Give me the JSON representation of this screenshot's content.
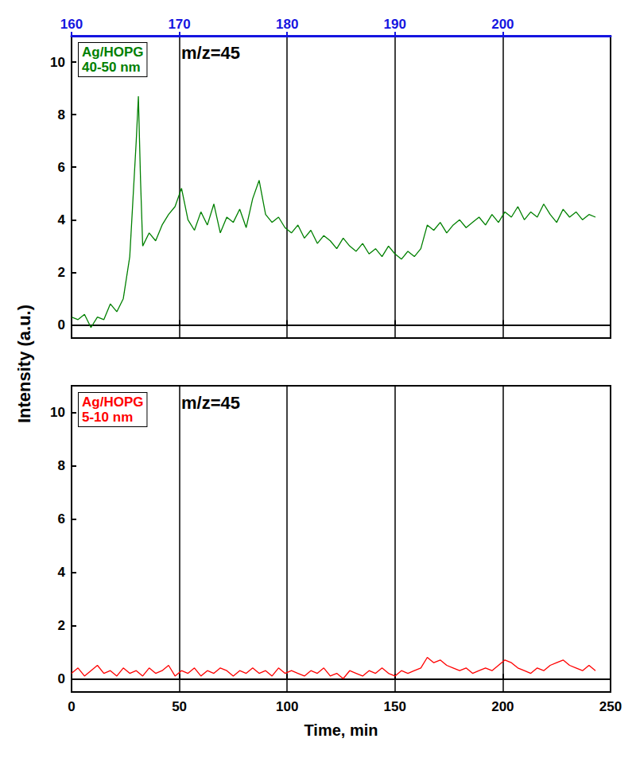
{
  "chart_data": [
    {
      "type": "line",
      "ylabel": "Intensity (a.u.)",
      "annotation": "m/z=45",
      "xlim": [
        0,
        250
      ],
      "xticks": [
        0,
        50,
        100,
        150,
        200,
        250
      ],
      "x2lim": [
        160,
        210
      ],
      "x2ticks": [
        160,
        170,
        180,
        190,
        200
      ],
      "ylim": [
        -0.5,
        11
      ],
      "yticks": [
        0,
        2,
        4,
        6,
        8,
        10
      ],
      "grid": true,
      "x": [
        0,
        3,
        6,
        9,
        12,
        15,
        18,
        21,
        24,
        27,
        30,
        31,
        32,
        33,
        36,
        39,
        42,
        45,
        48,
        51,
        54,
        57,
        60,
        63,
        66,
        69,
        72,
        75,
        78,
        81,
        84,
        87,
        90,
        93,
        96,
        99,
        102,
        105,
        108,
        111,
        114,
        117,
        120,
        123,
        126,
        129,
        132,
        135,
        138,
        141,
        144,
        147,
        150,
        153,
        156,
        159,
        162,
        165,
        168,
        171,
        174,
        177,
        180,
        183,
        186,
        189,
        192,
        195,
        198,
        201,
        204,
        207,
        210,
        213,
        216,
        219,
        222,
        225,
        228,
        231,
        234,
        237,
        240,
        243
      ],
      "series": [
        {
          "name": "Ag/HOPG 40-50 nm",
          "color": "#008000",
          "values": [
            0.3,
            0.2,
            0.4,
            -0.1,
            0.3,
            0.2,
            0.8,
            0.5,
            1.0,
            2.6,
            7.0,
            8.7,
            5.5,
            3.0,
            3.5,
            3.2,
            3.8,
            4.2,
            4.5,
            5.2,
            4.0,
            3.6,
            4.3,
            3.8,
            4.6,
            3.5,
            4.1,
            3.9,
            4.4,
            3.7,
            4.8,
            5.5,
            4.2,
            3.9,
            4.1,
            3.7,
            3.5,
            3.8,
            3.3,
            3.6,
            3.1,
            3.4,
            3.2,
            2.9,
            3.3,
            3.0,
            2.8,
            3.1,
            2.7,
            2.9,
            2.6,
            3.0,
            2.7,
            2.5,
            2.8,
            2.6,
            2.9,
            3.8,
            3.6,
            3.9,
            3.5,
            3.8,
            4.0,
            3.7,
            3.9,
            4.1,
            3.8,
            4.2,
            3.9,
            4.3,
            4.1,
            4.5,
            4.0,
            4.3,
            4.1,
            4.6,
            4.2,
            3.9,
            4.4,
            4.1,
            4.3,
            4.0,
            4.2,
            4.1
          ]
        }
      ]
    },
    {
      "type": "line",
      "xlabel": "Time, min",
      "annotation": "m/z=45",
      "xlim": [
        0,
        250
      ],
      "xticks": [
        0,
        50,
        100,
        150,
        200,
        250
      ],
      "ylim": [
        -0.5,
        11
      ],
      "yticks": [
        0,
        2,
        4,
        6,
        8,
        10
      ],
      "grid": true,
      "x": [
        0,
        3,
        6,
        9,
        12,
        15,
        18,
        21,
        24,
        27,
        30,
        33,
        36,
        39,
        42,
        45,
        48,
        51,
        54,
        57,
        60,
        63,
        66,
        69,
        72,
        75,
        78,
        81,
        84,
        87,
        90,
        93,
        96,
        99,
        102,
        105,
        108,
        111,
        114,
        117,
        120,
        123,
        126,
        129,
        132,
        135,
        138,
        141,
        144,
        147,
        150,
        153,
        156,
        159,
        162,
        165,
        168,
        171,
        174,
        177,
        180,
        183,
        186,
        189,
        192,
        195,
        198,
        201,
        204,
        207,
        210,
        213,
        216,
        219,
        222,
        225,
        228,
        231,
        234,
        237,
        240,
        243
      ],
      "series": [
        {
          "name": "Ag/HOPG 5-10 nm",
          "color": "#ff0000",
          "values": [
            0.2,
            0.4,
            0.1,
            0.3,
            0.5,
            0.2,
            0.3,
            0.1,
            0.4,
            0.2,
            0.3,
            0.1,
            0.4,
            0.2,
            0.3,
            0.5,
            0.1,
            0.3,
            0.2,
            0.4,
            0.1,
            0.3,
            0.2,
            0.4,
            0.3,
            0.1,
            0.3,
            0.2,
            0.4,
            0.2,
            0.3,
            0.1,
            0.4,
            0.2,
            0.3,
            0.2,
            0.1,
            0.3,
            0.2,
            0.4,
            0.1,
            0.2,
            0.0,
            0.3,
            0.2,
            0.1,
            0.3,
            0.2,
            0.4,
            0.2,
            0.1,
            0.3,
            0.2,
            0.3,
            0.4,
            0.8,
            0.6,
            0.7,
            0.5,
            0.4,
            0.3,
            0.4,
            0.2,
            0.3,
            0.4,
            0.3,
            0.5,
            0.7,
            0.6,
            0.4,
            0.3,
            0.2,
            0.4,
            0.3,
            0.5,
            0.6,
            0.7,
            0.5,
            0.4,
            0.3,
            0.5,
            0.3
          ]
        }
      ]
    }
  ]
}
